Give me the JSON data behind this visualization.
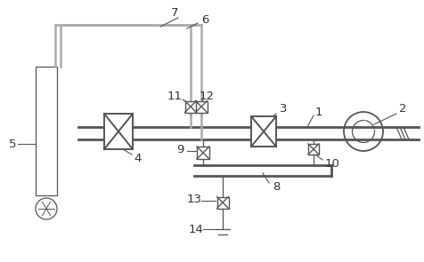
{
  "bg_color": "#ffffff",
  "dgray": "#555555",
  "lgray": "#aaaaaa",
  "label_color": "#333333",
  "figsize": [
    4.76,
    2.95
  ],
  "dpi": 100
}
